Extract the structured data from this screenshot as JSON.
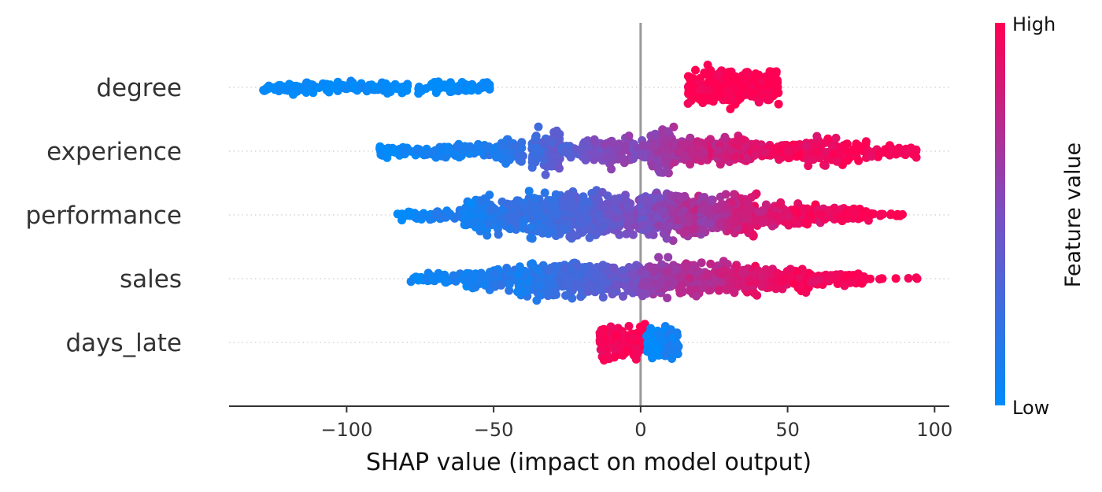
{
  "chart_data": {
    "type": "scatter",
    "subtype": "shap-beeswarm",
    "title": "",
    "xlabel": "SHAP value (impact on model output)",
    "ylabel": "",
    "xlim": [
      -140,
      105
    ],
    "x_ticks": [
      {
        "value": -100,
        "label": "−100"
      },
      {
        "value": -50,
        "label": "−50"
      },
      {
        "value": 0,
        "label": "0"
      },
      {
        "value": 50,
        "label": "50"
      },
      {
        "value": 100,
        "label": "100"
      }
    ],
    "features": [
      "degree",
      "experience",
      "performance",
      "sales",
      "days_late"
    ],
    "series": [
      {
        "name": "degree",
        "segments": [
          {
            "range": [
              -129,
              -79
            ],
            "value": [
              0.0,
              0.0
            ],
            "n": 120,
            "height": 0.55
          },
          {
            "range": [
              -76,
              -51
            ],
            "value": [
              0.0,
              0.0
            ],
            "n": 70,
            "height": 0.55
          },
          {
            "range": [
              16,
              47
            ],
            "value": [
              1.0,
              1.0
            ],
            "n": 320,
            "height": 1.55
          }
        ]
      },
      {
        "name": "experience",
        "segments": [
          {
            "range": [
              -89,
              -50
            ],
            "value": [
              0.0,
              0.15
            ],
            "n": 140,
            "height": 0.55
          },
          {
            "range": [
              -50,
              -40
            ],
            "value": [
              0.1,
              0.25
            ],
            "n": 70,
            "height": 0.9
          },
          {
            "range": [
              -37,
              -27
            ],
            "value": [
              0.25,
              0.4
            ],
            "n": 110,
            "height": 1.8
          },
          {
            "range": [
              -27,
              -15
            ],
            "value": [
              0.3,
              0.45
            ],
            "n": 50,
            "height": 0.5
          },
          {
            "range": [
              -20,
              -3
            ],
            "value": [
              0.45,
              0.6
            ],
            "n": 120,
            "height": 1.25
          },
          {
            "range": [
              -3,
              10
            ],
            "value": [
              0.5,
              0.65
            ],
            "n": 60,
            "height": 0.9
          },
          {
            "range": [
              3,
              12
            ],
            "value": [
              0.55,
              0.7
            ],
            "n": 90,
            "height": 1.8
          },
          {
            "range": [
              12,
              25
            ],
            "value": [
              0.65,
              0.85
            ],
            "n": 110,
            "height": 0.95
          },
          {
            "range": [
              25,
              36
            ],
            "value": [
              0.75,
              0.9
            ],
            "n": 110,
            "height": 1.15
          },
          {
            "range": [
              36,
              56
            ],
            "value": [
              0.85,
              1.0
            ],
            "n": 100,
            "height": 0.7
          },
          {
            "range": [
              56,
              77
            ],
            "value": [
              0.9,
              1.0
            ],
            "n": 100,
            "height": 1.15
          },
          {
            "range": [
              77,
              94
            ],
            "value": [
              0.95,
              1.0
            ],
            "n": 45,
            "height": 0.45
          }
        ]
      },
      {
        "name": "performance",
        "segments": [
          {
            "range": [
              -83,
              -60
            ],
            "value": [
              0.0,
              0.15
            ],
            "n": 55,
            "height": 0.45
          },
          {
            "range": [
              -60,
              -40
            ],
            "value": [
              0.05,
              0.25
            ],
            "n": 170,
            "height": 1.55
          },
          {
            "range": [
              -40,
              -20
            ],
            "value": [
              0.15,
              0.35
            ],
            "n": 240,
            "height": 1.9
          },
          {
            "range": [
              -20,
              0
            ],
            "value": [
              0.3,
              0.55
            ],
            "n": 240,
            "height": 1.75
          },
          {
            "range": [
              0,
              20
            ],
            "value": [
              0.45,
              0.75
            ],
            "n": 250,
            "height": 1.9
          },
          {
            "range": [
              20,
              40
            ],
            "value": [
              0.6,
              0.9
            ],
            "n": 210,
            "height": 1.75
          },
          {
            "range": [
              40,
              60
            ],
            "value": [
              0.8,
              1.0
            ],
            "n": 130,
            "height": 1.0
          },
          {
            "range": [
              60,
              78
            ],
            "value": [
              0.9,
              1.0
            ],
            "n": 70,
            "height": 0.65
          },
          {
            "range": [
              78,
              90
            ],
            "value": [
              0.95,
              1.0
            ],
            "n": 14,
            "height": 0.15
          }
        ]
      },
      {
        "name": "sales",
        "segments": [
          {
            "range": [
              -79,
              -60
            ],
            "value": [
              0.0,
              0.15
            ],
            "n": 45,
            "height": 0.45
          },
          {
            "range": [
              -60,
              -42
            ],
            "value": [
              0.05,
              0.2
            ],
            "n": 110,
            "height": 0.85
          },
          {
            "range": [
              -42,
              -20
            ],
            "value": [
              0.1,
              0.3
            ],
            "n": 210,
            "height": 1.55
          },
          {
            "range": [
              -20,
              0
            ],
            "value": [
              0.3,
              0.5
            ],
            "n": 200,
            "height": 1.35
          },
          {
            "range": [
              0,
              20
            ],
            "value": [
              0.55,
              0.75
            ],
            "n": 220,
            "height": 1.55
          },
          {
            "range": [
              20,
              40
            ],
            "value": [
              0.7,
              0.9
            ],
            "n": 180,
            "height": 1.35
          },
          {
            "range": [
              40,
              58
            ],
            "value": [
              0.85,
              1.0
            ],
            "n": 120,
            "height": 0.9
          },
          {
            "range": [
              58,
              76
            ],
            "value": [
              0.9,
              1.0
            ],
            "n": 80,
            "height": 0.5
          },
          {
            "range": [
              76,
              95
            ],
            "value": [
              0.95,
              1.0
            ],
            "n": 10,
            "height": 0.12
          }
        ]
      },
      {
        "name": "days_late",
        "segments": [
          {
            "range": [
              -14,
              2
            ],
            "value": [
              0.95,
              1.0
            ],
            "n": 130,
            "height": 1.45
          },
          {
            "range": [
              2,
              13
            ],
            "value": [
              0.0,
              0.12
            ],
            "n": 110,
            "height": 1.45
          }
        ]
      }
    ],
    "colorbar": {
      "high_label": "High",
      "low_label": "Low",
      "title": "Feature value",
      "low_color": "#008bfb",
      "mid_color": "#7a4fc2",
      "high_color": "#ff0052"
    },
    "grid": false,
    "legend": "colorbar-right"
  }
}
